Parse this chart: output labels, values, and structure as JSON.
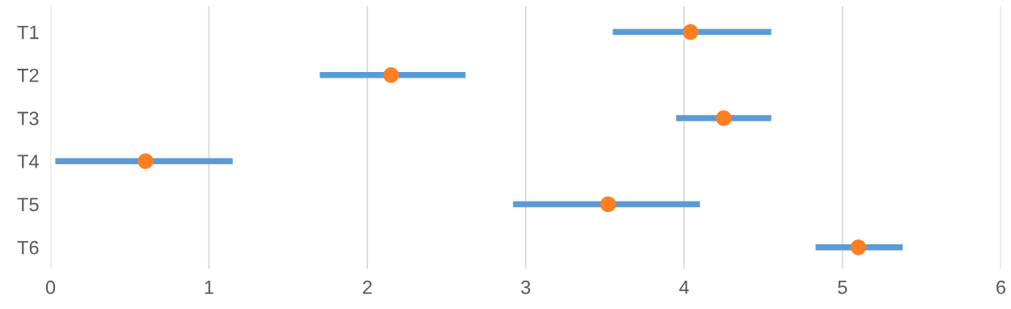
{
  "chart_data": {
    "type": "bar",
    "orientation": "horizontal",
    "categories": [
      "T1",
      "T2",
      "T3",
      "T4",
      "T5",
      "T6"
    ],
    "series": [
      {
        "color": "#5b9bd5",
        "base": [
          3.55,
          1.7,
          3.95,
          0.03,
          2.92,
          4.83
        ],
        "values": [
          1.0,
          0.92,
          0.6,
          1.12,
          1.18,
          0.55
        ]
      },
      {
        "type": "scatter",
        "color": "#fd7f23",
        "x": [
          "T1",
          "T2",
          "T3",
          "T4",
          "T5",
          "T6"
        ],
        "values": [
          4.04,
          2.15,
          4.25,
          0.6,
          3.52,
          5.1
        ]
      }
    ],
    "marker": "circle",
    "xlim": [
      0,
      6
    ],
    "xticks": [
      0,
      1,
      2,
      3,
      4,
      5,
      6
    ],
    "grid": "x",
    "legend": false
  }
}
